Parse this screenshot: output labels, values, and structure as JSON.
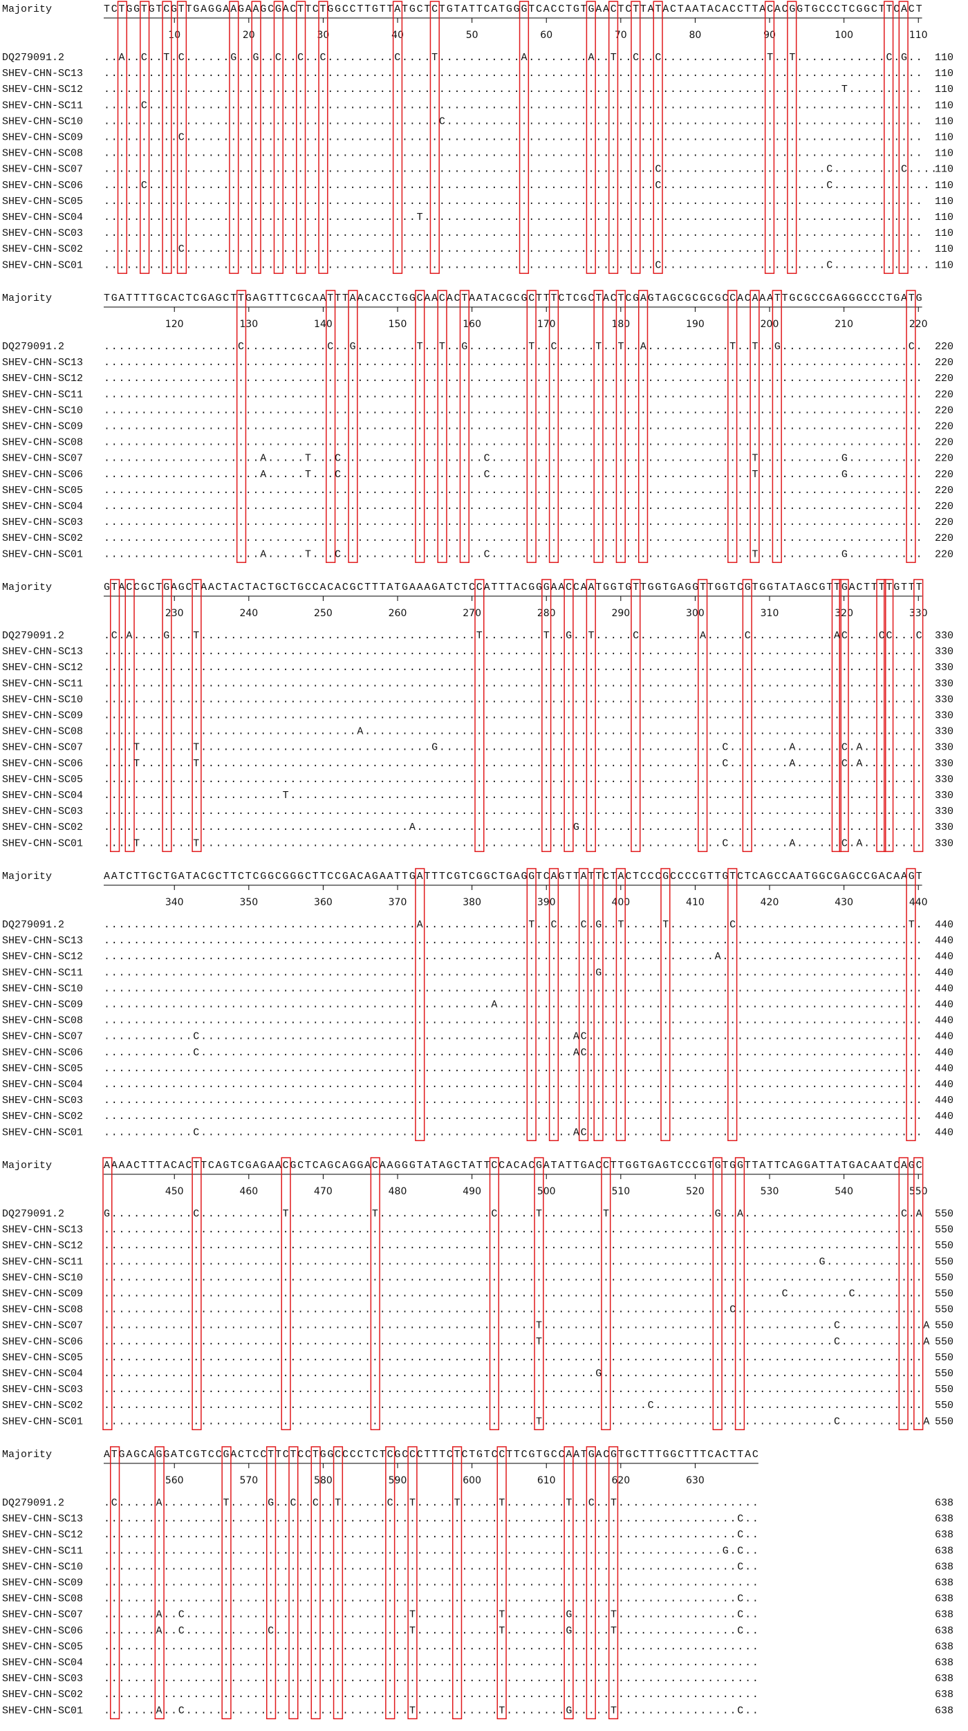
{
  "blocks": [
    {
      "majority_label": "Majority",
      "majority": "TCTGGTGTCGTTGAGGAAGAAGCGACTTCTGGCCTTGTTATGCTCTGTATTCATGGGTCACCTGTGAACTCTTATACTAATACACCTTACACGGTGCCCTCGGCTTCACT",
      "ruler": [
        10,
        20,
        30,
        40,
        50,
        60,
        70,
        80,
        90,
        100,
        110
      ],
      "rows": [
        {
          "name": "DQ279091.2",
          "seq": "..A..C..T.C......G..G..C..C..C.........C....T...........A........A..T..C..C..............T..T............C.G..",
          "end": 110
        },
        {
          "name": "SHEV-CHN-SC13",
          "seq": "..............................................................................................................",
          "end": 110
        },
        {
          "name": "SHEV-CHN-SC12",
          "seq": "...................................................................................................T..........",
          "end": 110
        },
        {
          "name": "SHEV-CHN-SC11",
          "seq": ".....C........................................................................................................",
          "end": 110
        },
        {
          "name": "SHEV-CHN-SC10",
          "seq": ".............................................C................................................................",
          "end": 110
        },
        {
          "name": "SHEV-CHN-SC09",
          "seq": "..........C...................................................................................................",
          "end": 110
        },
        {
          "name": "SHEV-CHN-SC08",
          "seq": "..............................................................................................................",
          "end": 110
        },
        {
          "name": "SHEV-CHN-SC07",
          "seq": "..........................................................................C......................C.........C....",
          "end": 110
        },
        {
          "name": "SHEV-CHN-SC06",
          "seq": ".....C....................................................................C......................C.............",
          "end": 110
        },
        {
          "name": "SHEV-CHN-SC05",
          "seq": "..............................................................................................................",
          "end": 110
        },
        {
          "name": "SHEV-CHN-SC04",
          "seq": "..........................................T...................................................................",
          "end": 110
        },
        {
          "name": "SHEV-CHN-SC03",
          "seq": "..............................................................................................................",
          "end": 110
        },
        {
          "name": "SHEV-CHN-SC02",
          "seq": "..........C...................................................................................................",
          "end": 110
        },
        {
          "name": "SHEV-CHN-SC01",
          "seq": "..........................................................................C......................C.............",
          "end": 110
        }
      ]
    },
    {
      "majority_label": "Majority",
      "majority": "TGATTTTGCACTCGAGCTTGAGTTTCGCAATTTAACACCTGGCAACACTAATACGCGCTTTCTCGCTACTCGAGTAGCGCGCGCCACAAATTGCGCCGAGGGCCCTGATG",
      "ruler": [
        120,
        130,
        140,
        150,
        160,
        170,
        180,
        190,
        200,
        210,
        220
      ],
      "rows": [
        {
          "name": "DQ279091.2",
          "seq": "..................C...........C..G........T..T..G........T..C.....T..T..A...........T..T..G.................C.",
          "end": 220
        },
        {
          "name": "SHEV-CHN-SC13",
          "seq": "..............................................................................................................",
          "end": 220
        },
        {
          "name": "SHEV-CHN-SC12",
          "seq": "..............................................................................................................",
          "end": 220
        },
        {
          "name": "SHEV-CHN-SC11",
          "seq": "..............................................................................................................",
          "end": 220
        },
        {
          "name": "SHEV-CHN-SC10",
          "seq": "..............................................................................................................",
          "end": 220
        },
        {
          "name": "SHEV-CHN-SC09",
          "seq": "..............................................................................................................",
          "end": 220
        },
        {
          "name": "SHEV-CHN-SC08",
          "seq": "..............................................................................................................",
          "end": 220
        },
        {
          "name": "SHEV-CHN-SC07",
          "seq": ".....................A.....T...C...................C...................................T...........G..........",
          "end": 220
        },
        {
          "name": "SHEV-CHN-SC06",
          "seq": ".....................A.....T...C...................C...................................T...........G..........",
          "end": 220
        },
        {
          "name": "SHEV-CHN-SC05",
          "seq": "..............................................................................................................",
          "end": 220
        },
        {
          "name": "SHEV-CHN-SC04",
          "seq": "..............................................................................................................",
          "end": 220
        },
        {
          "name": "SHEV-CHN-SC03",
          "seq": "..............................................................................................................",
          "end": 220
        },
        {
          "name": "SHEV-CHN-SC02",
          "seq": "..............................................................................................................",
          "end": 220
        },
        {
          "name": "SHEV-CHN-SC01",
          "seq": ".....................A.....T...C...................C...................................T...........G..........",
          "end": 220
        }
      ]
    },
    {
      "majority_label": "Majority",
      "majority": "GTACCGCTGAGCTAACTACTACTGCTGCCACACGCTTTATGAAAGATCTCCATTTACGGGAACCAATGGTGTTGGTGAGGTTGGTCGTGGTATAGCGTTGACTTTTGTTT",
      "ruler": [
        230,
        240,
        250,
        260,
        270,
        280,
        290,
        300,
        310,
        320,
        330
      ],
      "rows": [
        {
          "name": "DQ279091.2",
          "seq": ".C.A....G...T.....................................T........T..G..T.....C........A.....C...........AC....CC...C",
          "end": 330
        },
        {
          "name": "SHEV-CHN-SC13",
          "seq": "..............................................................................................................",
          "end": 330
        },
        {
          "name": "SHEV-CHN-SC12",
          "seq": "..............................................................................................................",
          "end": 330
        },
        {
          "name": "SHEV-CHN-SC11",
          "seq": "..............................................................................................................",
          "end": 330
        },
        {
          "name": "SHEV-CHN-SC10",
          "seq": "..............................................................................................................",
          "end": 330
        },
        {
          "name": "SHEV-CHN-SC09",
          "seq": "..............................................................................................................",
          "end": 330
        },
        {
          "name": "SHEV-CHN-SC08",
          "seq": "..................................A...........................................................................",
          "end": 330
        },
        {
          "name": "SHEV-CHN-SC07",
          "seq": "....T.......T...............................G......................................C........A......C.A........",
          "end": 330
        },
        {
          "name": "SHEV-CHN-SC06",
          "seq": "....T.......T......................................................................C........A......C.A........",
          "end": 330
        },
        {
          "name": "SHEV-CHN-SC05",
          "seq": "..............................................................................................................",
          "end": 330
        },
        {
          "name": "SHEV-CHN-SC04",
          "seq": "........................T.....................................................................................",
          "end": 330
        },
        {
          "name": "SHEV-CHN-SC03",
          "seq": "..............................................................................................................",
          "end": 330
        },
        {
          "name": "SHEV-CHN-SC02",
          "seq": ".........................................A.....................G..............................................",
          "end": 330
        },
        {
          "name": "SHEV-CHN-SC01",
          "seq": "....T.......T......................................................................C........A......C.A........",
          "end": 330
        }
      ]
    },
    {
      "majority_label": "Majority",
      "majority": "AATCTTGCTGATACGCTTCTCGGCGGGCTTCCGACAGAATTGATTTCGTCGGCTGAGGTCAGTTATTCTACTCCCGCCCCGTTGTCTCAGCCAATGGCGAGCCGACAAGT",
      "ruler": [
        340,
        350,
        360,
        370,
        380,
        390,
        400,
        410,
        420,
        430,
        440
      ],
      "rows": [
        {
          "name": "DQ279091.2",
          "seq": "..........................................A..............T..C...C.G..T.....T........C.......................T.",
          "end": 440
        },
        {
          "name": "SHEV-CHN-SC13",
          "seq": "..............................................................................................................",
          "end": 440
        },
        {
          "name": "SHEV-CHN-SC12",
          "seq": "..................................................................................A...........................",
          "end": 440
        },
        {
          "name": "SHEV-CHN-SC11",
          "seq": "..................................................................G...........................................",
          "end": 440
        },
        {
          "name": "SHEV-CHN-SC10",
          "seq": "..............................................................................................................",
          "end": 440
        },
        {
          "name": "SHEV-CHN-SC09",
          "seq": "....................................................A.........................................................",
          "end": 440
        },
        {
          "name": "SHEV-CHN-SC08",
          "seq": "..............................................................................................................",
          "end": 440
        },
        {
          "name": "SHEV-CHN-SC07",
          "seq": "............C..................................................AC.............................................",
          "end": 440
        },
        {
          "name": "SHEV-CHN-SC06",
          "seq": "............C..................................................AC.............................................",
          "end": 440
        },
        {
          "name": "SHEV-CHN-SC05",
          "seq": "..............................................................................................................",
          "end": 440
        },
        {
          "name": "SHEV-CHN-SC04",
          "seq": "..............................................................................................................",
          "end": 440
        },
        {
          "name": "SHEV-CHN-SC03",
          "seq": "..............................................................................................................",
          "end": 440
        },
        {
          "name": "SHEV-CHN-SC02",
          "seq": "..............................................................................................................",
          "end": 440
        },
        {
          "name": "SHEV-CHN-SC01",
          "seq": "............C..................................................AC.............................................",
          "end": 440
        }
      ]
    },
    {
      "majority_label": "Majority",
      "majority": "AAAACTTTACACTTCAGTCGAGAACGCTCAGCAGGACAAGGGTATAGCTATTCCACACGATATTGACCTTGGTGAGTCCCGTGTGGTTATTCAGGATTATGACAATCAGC",
      "ruler": [
        450,
        460,
        470,
        480,
        490,
        500,
        510,
        520,
        530,
        540,
        550
      ],
      "rows": [
        {
          "name": "DQ279091.2",
          "seq": "G...........C...........T...........T...............C.....T........T..............G..A.....................C.A",
          "end": 550
        },
        {
          "name": "SHEV-CHN-SC13",
          "seq": "..............................................................................................................",
          "end": 550
        },
        {
          "name": "SHEV-CHN-SC12",
          "seq": "..............................................................................................................",
          "end": 550
        },
        {
          "name": "SHEV-CHN-SC11",
          "seq": "................................................................................................G.............",
          "end": 550
        },
        {
          "name": "SHEV-CHN-SC10",
          "seq": "..............................................................................................................",
          "end": 550
        },
        {
          "name": "SHEV-CHN-SC09",
          "seq": "...........................................................................................C........C.........",
          "end": 550
        },
        {
          "name": "SHEV-CHN-SC08",
          "seq": "....................................................................................C.........................",
          "end": 550
        },
        {
          "name": "SHEV-CHN-SC07",
          "seq": "..........................................................T.......................................C...........A",
          "end": 550
        },
        {
          "name": "SHEV-CHN-SC06",
          "seq": "..........................................................T.......................................C...........A",
          "end": 550
        },
        {
          "name": "SHEV-CHN-SC05",
          "seq": "..............................................................................................................",
          "end": 550
        },
        {
          "name": "SHEV-CHN-SC04",
          "seq": "..................................................................G...........................................",
          "end": 550
        },
        {
          "name": "SHEV-CHN-SC03",
          "seq": "..............................................................................................................",
          "end": 550
        },
        {
          "name": "SHEV-CHN-SC02",
          "seq": ".........................................................................C....................................",
          "end": 550
        },
        {
          "name": "SHEV-CHN-SC01",
          "seq": "..........................................................T.......................................C...........A",
          "end": 550
        }
      ]
    },
    {
      "majority_label": "Majority",
      "majority": "ATGAGCAGGATCGTCCGACTCCTTCTCCTGGCCCCTCTCGCCCTTTCTCTGTCCTTCGTGCCAATGACGTGCTTTGGCTTTCACTTAC",
      "ruler": [
        560,
        570,
        580,
        590,
        600,
        610,
        620,
        630
      ],
      "rows": [
        {
          "name": "DQ279091.2",
          "seq": ".C.....A........T.....G..C..C..T......C..T.....T.....T........T..C..T...................",
          "end": 638
        },
        {
          "name": "SHEV-CHN-SC13",
          "seq": ".....................................................................................C..",
          "end": 638
        },
        {
          "name": "SHEV-CHN-SC12",
          "seq": ".....................................................................................C..",
          "end": 638
        },
        {
          "name": "SHEV-CHN-SC11",
          "seq": "...................................................................................G.C..",
          "end": 638
        },
        {
          "name": "SHEV-CHN-SC10",
          "seq": ".....................................................................................C..",
          "end": 638
        },
        {
          "name": "SHEV-CHN-SC09",
          "seq": "........................................................................................",
          "end": 638
        },
        {
          "name": "SHEV-CHN-SC08",
          "seq": ".....................................................................................C..",
          "end": 638
        },
        {
          "name": "SHEV-CHN-SC07",
          "seq": ".......A..C..............................T...........T........G.....T................C..",
          "end": 638
        },
        {
          "name": "SHEV-CHN-SC06",
          "seq": ".......A..C...........C..................T...........T........G.....T................C..",
          "end": 638
        },
        {
          "name": "SHEV-CHN-SC05",
          "seq": "........................................................................................",
          "end": 638
        },
        {
          "name": "SHEV-CHN-SC04",
          "seq": "........................................................................................",
          "end": 638
        },
        {
          "name": "SHEV-CHN-SC03",
          "seq": "........................................................................................",
          "end": 638
        },
        {
          "name": "SHEV-CHN-SC02",
          "seq": "........................................................................................",
          "end": 638
        },
        {
          "name": "SHEV-CHN-SC01",
          "seq": ".......A..C..............................T...........T........G.....T................C..",
          "end": 638
        }
      ]
    }
  ]
}
